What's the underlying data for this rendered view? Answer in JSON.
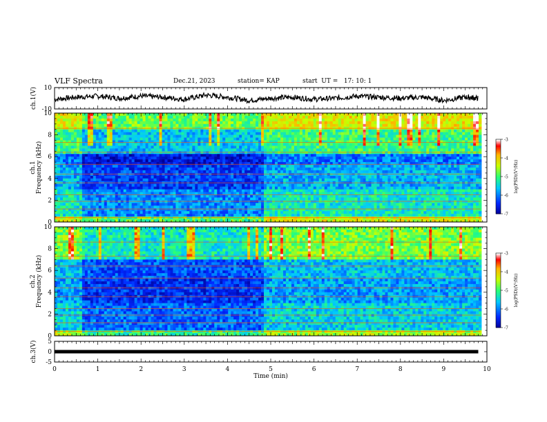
{
  "header": {
    "title": "VLF Spectra",
    "date": "Dec.21, 2023",
    "station": "station= KAP",
    "start": "start  UT =   17: 10: 1"
  },
  "chart_data": [
    {
      "type": "line",
      "panel": "ch1-waveform",
      "ylabel": "ch.1(V)",
      "yticklabels": [
        "10",
        "-10"
      ],
      "ylim": [
        -10,
        10
      ],
      "xlim": [
        0,
        10
      ],
      "x": [
        0,
        0.5,
        1,
        1.5,
        2,
        2.5,
        3,
        3.5,
        4,
        4.5,
        5,
        5.5,
        6,
        6.5,
        7,
        7.5,
        8,
        8.5,
        9,
        9.5,
        9.8
      ],
      "values": [
        -1,
        1,
        2,
        0,
        2,
        1,
        -1,
        3,
        1,
        -2,
        0,
        1,
        -1,
        0,
        2,
        1,
        0,
        1,
        -2,
        1,
        0
      ],
      "color": "#000000"
    },
    {
      "type": "heatmap",
      "panel": "ch1-spectrogram",
      "ylabel": "ch.1\nFrequency (kHz)",
      "yticks": [
        0,
        2,
        4,
        6,
        8,
        10
      ],
      "ylim": [
        0,
        10
      ],
      "xlim": [
        0,
        10
      ],
      "colorbar": {
        "ticks": [
          -3,
          -4,
          -5,
          -6,
          -7
        ],
        "label": "log(PSD)(V²/Hz)"
      },
      "band_levels": [
        {
          "from": 0,
          "to": 0.6,
          "level": -4.6
        },
        {
          "from": 0.6,
          "to": 3.0,
          "level": -5.6
        },
        {
          "from": 3.0,
          "to": 5.2,
          "level": -6.0
        },
        {
          "from": 5.2,
          "to": 6.3,
          "level": -6.3
        },
        {
          "from": 6.3,
          "to": 8.5,
          "level": -5.3
        },
        {
          "from": 8.5,
          "to": 10,
          "level": -4.5
        }
      ]
    },
    {
      "type": "heatmap",
      "panel": "ch2-spectrogram",
      "ylabel": "ch.2\nFrequency (kHz)",
      "yticks": [
        0,
        2,
        4,
        6,
        8,
        10
      ],
      "ylim": [
        0,
        10
      ],
      "xlim": [
        0,
        10
      ],
      "colorbar": {
        "ticks": [
          -3,
          -4,
          -5,
          -6,
          -7
        ],
        "label": "log(PSD)(V²/Hz)"
      },
      "band_levels": [
        {
          "from": 0,
          "to": 0.6,
          "level": -4.8
        },
        {
          "from": 0.6,
          "to": 3.0,
          "level": -5.8
        },
        {
          "from": 3.0,
          "to": 5.2,
          "level": -6.1
        },
        {
          "from": 5.2,
          "to": 7.0,
          "level": -5.9
        },
        {
          "from": 7.0,
          "to": 10,
          "level": -5.0
        }
      ]
    },
    {
      "type": "line",
      "panel": "ch3-waveform",
      "ylabel": "ch.3(V)",
      "yticklabels": [
        "5",
        "0",
        "-5"
      ],
      "ylim": [
        -5,
        5
      ],
      "xlim": [
        0,
        10
      ],
      "x": [
        0,
        9.8
      ],
      "values": [
        0,
        0
      ],
      "color": "#000000"
    }
  ],
  "xaxis": {
    "label": "Time  (min)",
    "ticks": [
      "0",
      "1",
      "2",
      "3",
      "4",
      "5",
      "6",
      "7",
      "8",
      "9",
      "10"
    ]
  }
}
